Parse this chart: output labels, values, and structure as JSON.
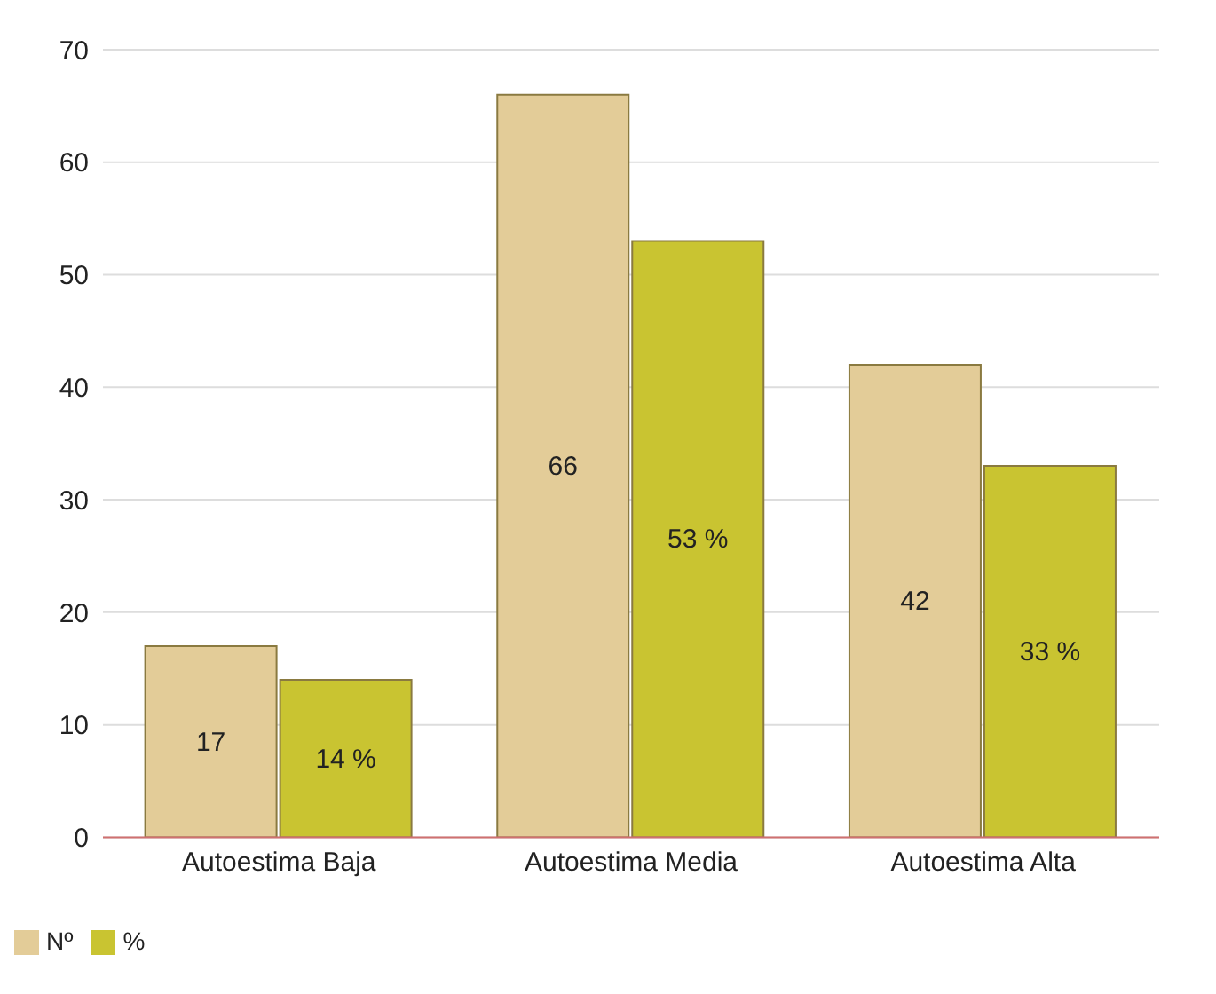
{
  "chart_data": {
    "type": "bar",
    "categories": [
      "Autoestima Baja",
      "Autoestima Media",
      "Autoestima Alta"
    ],
    "series": [
      {
        "name": "Nº",
        "color": "#e3cc98",
        "values": [
          17,
          66,
          42
        ],
        "value_labels": [
          "17",
          "66",
          "42"
        ]
      },
      {
        "name": "%",
        "color": "#c9c431",
        "values": [
          14,
          53,
          33
        ],
        "value_labels": [
          "14 %",
          "53 %",
          "33 %"
        ]
      }
    ],
    "ylim": [
      0,
      70
    ],
    "yticks": [
      0,
      10,
      20,
      30,
      40,
      50,
      60,
      70
    ],
    "grid": "y",
    "legend": "bottom left"
  }
}
